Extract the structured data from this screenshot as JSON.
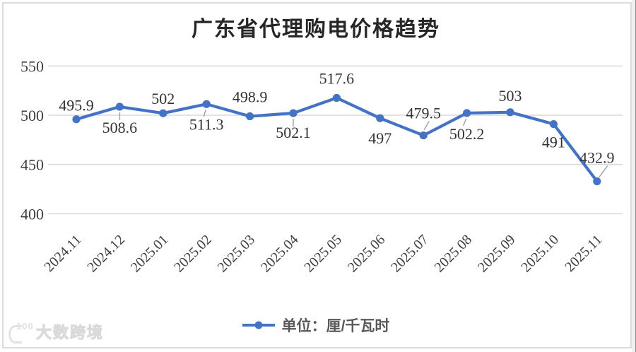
{
  "page": {
    "title": "广东省代理购电价格趋势",
    "watermark": {
      "logo_text": "100",
      "text": "大数跨境"
    }
  },
  "legend": {
    "label": "单位：厘/千瓦时",
    "marker": "line-with-dot-icon"
  },
  "colors": {
    "line": "#4472c4",
    "grid": "#d9d9d9",
    "data_label": "#333333",
    "axis_label": "#3f3f3f",
    "leader": "#a6a6a6",
    "legend_text": "#595959",
    "frame_border": "#dcdcdc",
    "watermark": "#e2e2e2"
  },
  "chart_data": {
    "type": "line",
    "title": "广东省代理购电价格趋势",
    "categories": [
      "2024.11",
      "2024.12",
      "2025.01",
      "2025.02",
      "2025.03",
      "2025.04",
      "2025.05",
      "2025.06",
      "2025.07",
      "2025.08",
      "2025.09",
      "2025.10",
      "2025.11"
    ],
    "series": [
      {
        "name": "单位：厘/千瓦时",
        "values": [
          495.9,
          508.6,
          502,
          511.3,
          498.9,
          502.1,
          517.6,
          497,
          479.5,
          502.2,
          503,
          491,
          432.9
        ]
      }
    ],
    "xlabel": "",
    "ylabel": "",
    "ylim": [
      400,
      550
    ],
    "yticks": [
      550,
      500,
      450,
      400
    ],
    "grid": true,
    "legend_position": "bottom",
    "label_positions": [
      "above",
      "below",
      "above",
      "below",
      "above",
      "below",
      "above",
      "below",
      "above",
      "below",
      "above",
      "below",
      "above"
    ],
    "leader_lines": [
      false,
      true,
      false,
      true,
      false,
      true,
      false,
      false,
      true,
      true,
      false,
      false,
      true
    ]
  }
}
